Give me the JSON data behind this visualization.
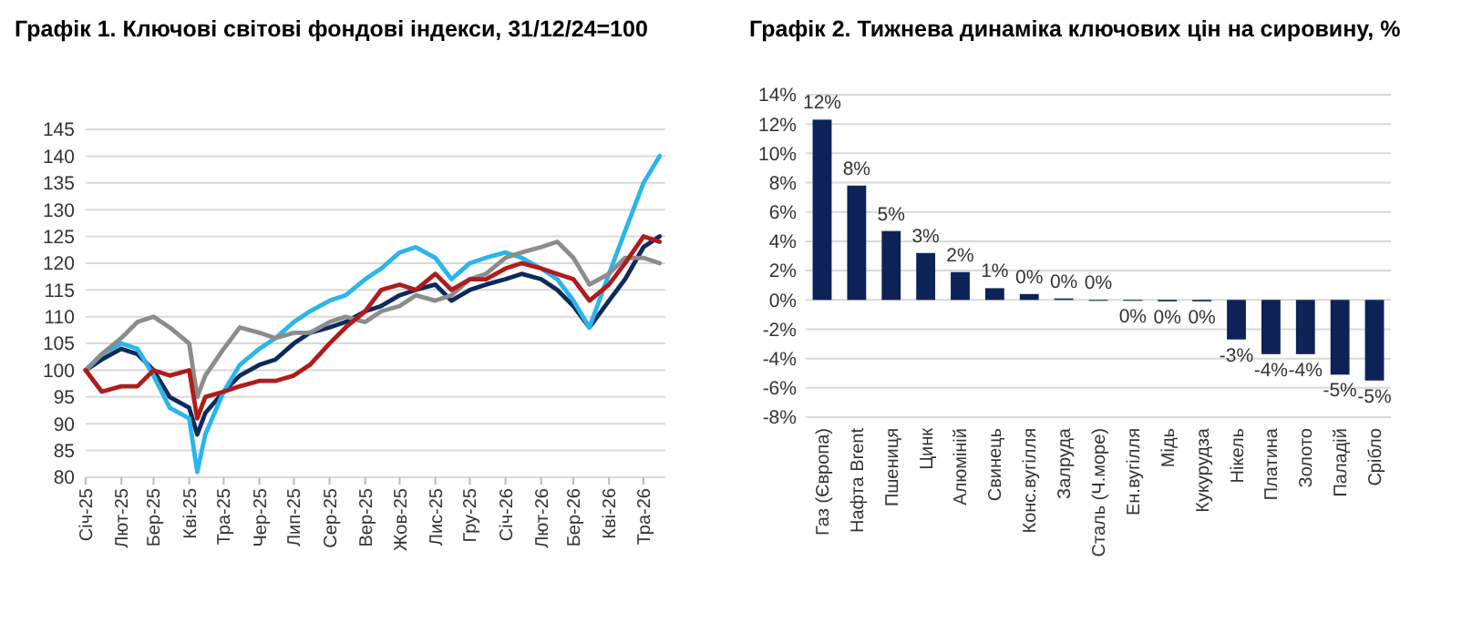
{
  "chart_data": [
    {
      "type": "line",
      "title": "Графік 1. Ключові світові фондові індекси, 31/12/24=100",
      "x": [
        "2025-01-01",
        "2025-01-15",
        "2025-02-01",
        "2025-02-15",
        "2025-03-01",
        "2025-03-15",
        "2025-04-01",
        "2025-04-08",
        "2025-04-15",
        "2025-05-01",
        "2025-05-15",
        "2025-06-01",
        "2025-06-15",
        "2025-07-01",
        "2025-07-15",
        "2025-08-01",
        "2025-08-15",
        "2025-09-01",
        "2025-09-15",
        "2025-10-01",
        "2025-10-15",
        "2025-11-01",
        "2025-11-15",
        "2025-12-01",
        "2025-12-15",
        "2026-01-01",
        "2026-01-15",
        "2026-02-01",
        "2026-02-15",
        "2026-03-01",
        "2026-03-15",
        "2026-04-01",
        "2026-04-15",
        "2026-05-01",
        "2026-05-15"
      ],
      "series": [
        {
          "color": "#0d2a5c",
          "values": [
            100,
            102,
            104,
            103,
            100,
            95,
            93,
            88,
            92,
            96,
            99,
            101,
            102,
            105,
            107,
            108,
            109,
            111,
            112,
            114,
            115,
            116,
            113,
            115,
            116,
            117,
            118,
            117,
            115,
            112,
            108,
            113,
            117,
            123,
            125
          ]
        },
        {
          "color": "#2bb5ea",
          "values": [
            100,
            103,
            105,
            104,
            99,
            93,
            91,
            81,
            88,
            96,
            101,
            104,
            106,
            109,
            111,
            113,
            114,
            117,
            119,
            122,
            123,
            121,
            117,
            120,
            121,
            122,
            121,
            119,
            117,
            113,
            108,
            118,
            126,
            135,
            140
          ]
        },
        {
          "color": "#8c8c8c",
          "values": [
            100,
            103,
            106,
            109,
            110,
            108,
            105,
            95,
            99,
            104,
            108,
            107,
            106,
            107,
            107,
            109,
            110,
            109,
            111,
            112,
            114,
            113,
            114,
            117,
            118,
            121,
            122,
            123,
            124,
            121,
            116,
            118,
            121,
            121,
            120
          ]
        },
        {
          "color": "#b01c1c",
          "values": [
            100,
            96,
            97,
            97,
            100,
            99,
            100,
            91,
            95,
            96,
            97,
            98,
            98,
            99,
            101,
            105,
            108,
            111,
            115,
            116,
            115,
            118,
            115,
            117,
            117,
            119,
            120,
            119,
            118,
            117,
            113,
            116,
            120,
            125,
            124
          ]
        }
      ],
      "xlim": [
        "2025-01-01",
        "2026-05-20"
      ],
      "xticks": [
        {
          "value": "2025-01-01",
          "label": "Січ-25"
        },
        {
          "value": "2025-02-01",
          "label": "Лют-25"
        },
        {
          "value": "2025-03-01",
          "label": "Бер-25"
        },
        {
          "value": "2025-04-01",
          "label": "Кві-25"
        },
        {
          "value": "2025-05-01",
          "label": "Тра-25"
        },
        {
          "value": "2025-06-01",
          "label": "Чер-25"
        },
        {
          "value": "2025-07-01",
          "label": "Лип-25"
        },
        {
          "value": "2025-08-01",
          "label": "Сер-25"
        },
        {
          "value": "2025-09-01",
          "label": "Вер-25"
        },
        {
          "value": "2025-10-01",
          "label": "Жов-25"
        },
        {
          "value": "2025-11-01",
          "label": "Лис-25"
        },
        {
          "value": "2025-12-01",
          "label": "Гру-25"
        },
        {
          "value": "2026-01-01",
          "label": "Січ-26"
        },
        {
          "value": "2026-02-01",
          "label": "Лют-26"
        },
        {
          "value": "2026-03-01",
          "label": "Бер-26"
        },
        {
          "value": "2026-04-01",
          "label": "Кві-26"
        },
        {
          "value": "2026-05-01",
          "label": "Тра-26"
        }
      ],
      "ylim": [
        80,
        145
      ],
      "yticks": [
        80,
        85,
        90,
        95,
        100,
        105,
        110,
        115,
        120,
        125,
        130,
        135,
        140,
        145
      ],
      "grid": "y"
    },
    {
      "type": "bar",
      "title": "Графік 2. Тижнева динаміка ключових цін на сировину, %",
      "categories": [
        "Газ (Європа)",
        "Нафта Brent",
        "Пшениця",
        "Цинк",
        "Алюміній",
        "Свинець",
        "Конс.вугілля",
        "Залруда",
        "Сталь (Ч.море)",
        "Ен.вугілля",
        "Мідь",
        "Кукурудза",
        "Нікель",
        "Платина",
        "Золото",
        "Паладій",
        "Срібло"
      ],
      "values": [
        12.3,
        7.8,
        4.7,
        3.2,
        1.9,
        0.8,
        0.4,
        0.1,
        0,
        -0.05,
        -0.1,
        -0.1,
        -2.7,
        -3.7,
        -3.7,
        -5.1,
        -5.5
      ],
      "value_labels": [
        "12%",
        "8%",
        "5%",
        "3%",
        "2%",
        "1%",
        "0%",
        "0%",
        "0%",
        "0%",
        "0%",
        "0%",
        "-3%",
        "-4%",
        "-4%",
        "-5%",
        "-5%"
      ],
      "color": "#0d2257",
      "ylim": [
        -8,
        14
      ],
      "yticks": [
        {
          "value": -8,
          "label": "-8%"
        },
        {
          "value": -6,
          "label": "-6%"
        },
        {
          "value": -4,
          "label": "-4%"
        },
        {
          "value": -2,
          "label": "-2%"
        },
        {
          "value": 0,
          "label": "0%"
        },
        {
          "value": 2,
          "label": "2%"
        },
        {
          "value": 4,
          "label": "4%"
        },
        {
          "value": 6,
          "label": "6%"
        },
        {
          "value": 8,
          "label": "8%"
        },
        {
          "value": 10,
          "label": "10%"
        },
        {
          "value": 12,
          "label": "12%"
        },
        {
          "value": 14,
          "label": "14%"
        }
      ],
      "grid": "y"
    }
  ]
}
